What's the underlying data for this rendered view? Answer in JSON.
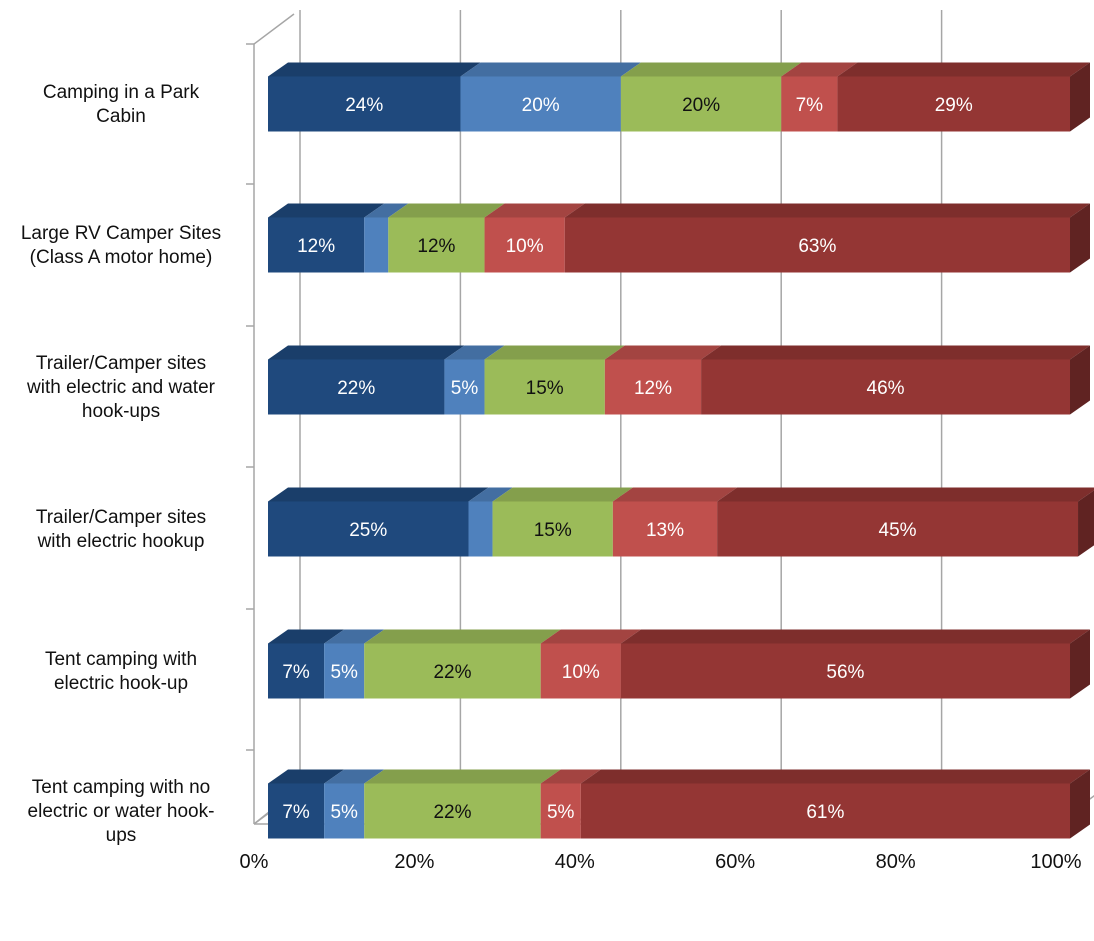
{
  "chart_data": {
    "type": "bar",
    "orientation": "horizontal",
    "stacked": "percent",
    "three_d": true,
    "categories": [
      "Camping in a Park Cabin",
      "Large RV Camper Sites (Class A motor home)",
      "Trailer/Camper sites with electric and water hook-ups",
      "Trailer/Camper sites with electric hookup",
      "Tent camping with electric hook-up",
      "Tent camping with no electric or water hook-ups"
    ],
    "category_label_lines": [
      [
        "Camping in a Park",
        "Cabin"
      ],
      [
        "Large RV Camper Sites",
        "(Class A motor home)"
      ],
      [
        "Trailer/Camper sites",
        "with electric and water",
        "hook-ups"
      ],
      [
        "Trailer/Camper sites",
        "with electric hookup"
      ],
      [
        "Tent camping with",
        "electric hook-up"
      ],
      [
        "Tent camping with no",
        "electric or water hook-",
        "ups"
      ]
    ],
    "series": [
      {
        "color": "#1f497d",
        "values": [
          24,
          12,
          22,
          25,
          7,
          7
        ],
        "labels": [
          "24%",
          "12%",
          "22%",
          "25%",
          "7%",
          "7%"
        ]
      },
      {
        "color": "#4f81bd",
        "values": [
          20,
          3,
          5,
          3,
          5,
          5
        ],
        "labels": [
          "20%",
          "",
          "5%",
          "",
          "5%",
          "5%"
        ]
      },
      {
        "color": "#9bbb59",
        "values": [
          20,
          12,
          15,
          15,
          22,
          22
        ],
        "labels": [
          "20%",
          "12%",
          "15%",
          "15%",
          "22%",
          "22%"
        ]
      },
      {
        "color": "#c0504d",
        "values": [
          7,
          10,
          12,
          13,
          10,
          5
        ],
        "labels": [
          "7%",
          "10%",
          "12%",
          "13%",
          "10%",
          "5%"
        ]
      },
      {
        "color": "#943634",
        "values": [
          29,
          63,
          46,
          45,
          56,
          61
        ],
        "labels": [
          "29%",
          "63%",
          "46%",
          "45%",
          "56%",
          "61%"
        ]
      }
    ],
    "x_ticks": [
      "0%",
      "20%",
      "40%",
      "60%",
      "80%",
      "100%"
    ],
    "xlim": [
      0,
      100
    ],
    "grid": true,
    "legend": "none",
    "title": "",
    "xlabel": "",
    "ylabel": ""
  }
}
